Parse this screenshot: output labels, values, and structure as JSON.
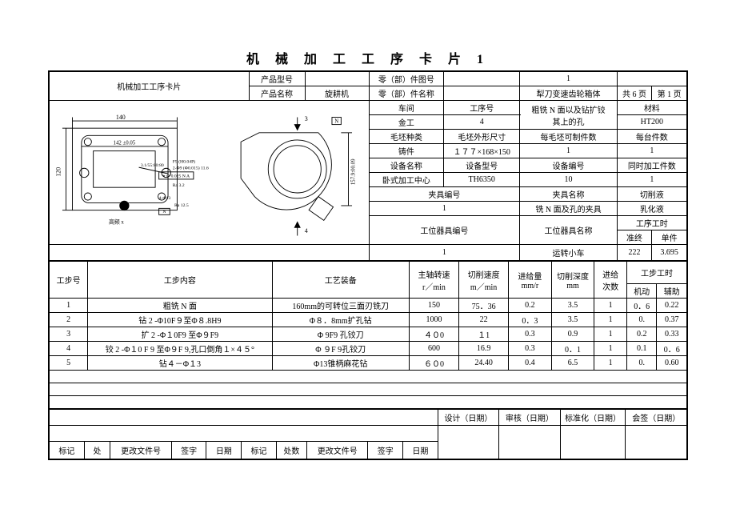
{
  "title": "机 械 加 工 工 序 卡 片 1",
  "header": {
    "card_name": "机械加工工序卡片",
    "product_model_label": "产品型号",
    "product_model": "",
    "part_drawing_no_label": "零（部）件图号",
    "part_drawing_no": "",
    "seq_no": "1",
    "product_name_label": "产品名称",
    "product_name": "旋耕机",
    "part_name_label": "零（部）件名称",
    "part_name": "",
    "component": "犁刀变速齿轮箱体",
    "pages_total_label_l": "共",
    "pages_total": "6",
    "pages_total_label_r": "页",
    "page_no_label_l": "第",
    "page_no": "1",
    "page_no_label_r": "页"
  },
  "info": {
    "workshop_label": "车间",
    "process_no_label": "工序号",
    "process_name": "粗铣 N 面以及钻扩铰\n其上的孔",
    "material_label": "材料",
    "workshop": "金工",
    "process_no": "4",
    "material": "HT200",
    "blank_type_label": "毛坯种类",
    "blank_dim_label": "毛坯外形尺寸",
    "qty_per_blank_label": "每毛坯可制件数",
    "qty_per_unit_label": "每台件数",
    "blank_type": "铸件",
    "blank_dim": "１７７×168×150",
    "qty_per_blank": "1",
    "qty_per_unit": "1",
    "equip_name_label": "设备名称",
    "equip_model_label": "设备型号",
    "equip_no_label": "设备编号",
    "simul_label": "同时加工件数",
    "equip_name": "卧式加工中心",
    "equip_model": "TH6350",
    "equip_no": "10",
    "simul": "1",
    "fixture_no_label": "夹具编号",
    "fixture_name_label": "夹具名称",
    "coolant_label": "切削液",
    "fixture_no": "1",
    "fixture_name": "铣 N 面及孔的夹具",
    "coolant": "乳化液",
    "station_no_label": "工位器具编号",
    "station_name_label": "工位器具名称",
    "work_time_label": "工序工时",
    "prep_label": "准终",
    "unit_label": "单件",
    "station_no": "1",
    "station_name": "运转小车",
    "prep_time": "222",
    "unit_time": "3.695"
  },
  "cols": {
    "step_no": "工步号",
    "step_content": "工步内容",
    "tooling": "工艺装备",
    "spindle": "主轴转速\nr／min",
    "cut_speed": "切削速度\nm／min",
    "feed": "进给量\nmm/r",
    "depth": "切削深度\nmm",
    "feeds": "进给\n次数",
    "step_time": "工步工时",
    "mech": "机动",
    "aux": "辅助"
  },
  "rows": [
    {
      "no": "1",
      "content": "粗铣 N 面",
      "tool": "160mm的可转位三面刃铣刀",
      "spindle": "150",
      "speed": "75．36",
      "feed": "0.2",
      "depth": "3.5",
      "feeds": "1",
      "mech": "0．6",
      "aux": "0.22"
    },
    {
      "no": "2",
      "content": "钻 2 -Φ10F９至Φ８.8H9",
      "tool": "Φ８．8mm扩孔钻",
      "spindle": "1000",
      "speed": "22",
      "feed": "0．3",
      "depth": "3.5",
      "feeds": "1",
      "mech": "0.",
      "aux": "0.37"
    },
    {
      "no": "3",
      "content": "扩 2 -Φ１0F9 至Φ９F9",
      "tool": "Φ 9F9 孔铰刀",
      "spindle": "４０0",
      "speed": "１1",
      "feed": "0.3",
      "depth": "0.9",
      "feeds": "1",
      "mech": "0.2",
      "aux": "0.33"
    },
    {
      "no": "4",
      "content": "铰 2 -Φ１0 F 9 至Φ９F 9,孔口倒角１×４５°",
      "tool": "Φ ９F 9孔铰刀",
      "spindle": "600",
      "speed": "16.9",
      "feed": "0.3",
      "depth": "0．1",
      "feeds": "1",
      "mech": "0.1",
      "aux": "0．6"
    },
    {
      "no": "5",
      "content": "钻４－Φ１3",
      "tool": "Φ13锥柄麻花钻",
      "spindle": "６０0",
      "speed": "24.40",
      "feed": "0.4",
      "depth": "6.5",
      "feeds": "1",
      "mech": "0.",
      "aux": "0.60"
    }
  ],
  "footer": {
    "design": "设计（日期）",
    "review": "审核（日期）",
    "standard": "标准化（日期）",
    "sign": "会签（日期）",
    "mark": "标记",
    "place": "处",
    "change_doc": "更改文件号",
    "signature": "签字",
    "date": "日期",
    "mark2": "标记",
    "place2": "处数",
    "change_doc2": "更改文件号",
    "signature2": "签字",
    "date2": "日期"
  },
  "style": {
    "border_color": "#000000",
    "bg": "#ffffff",
    "font_size_body": 10,
    "font_size_title": 16
  }
}
